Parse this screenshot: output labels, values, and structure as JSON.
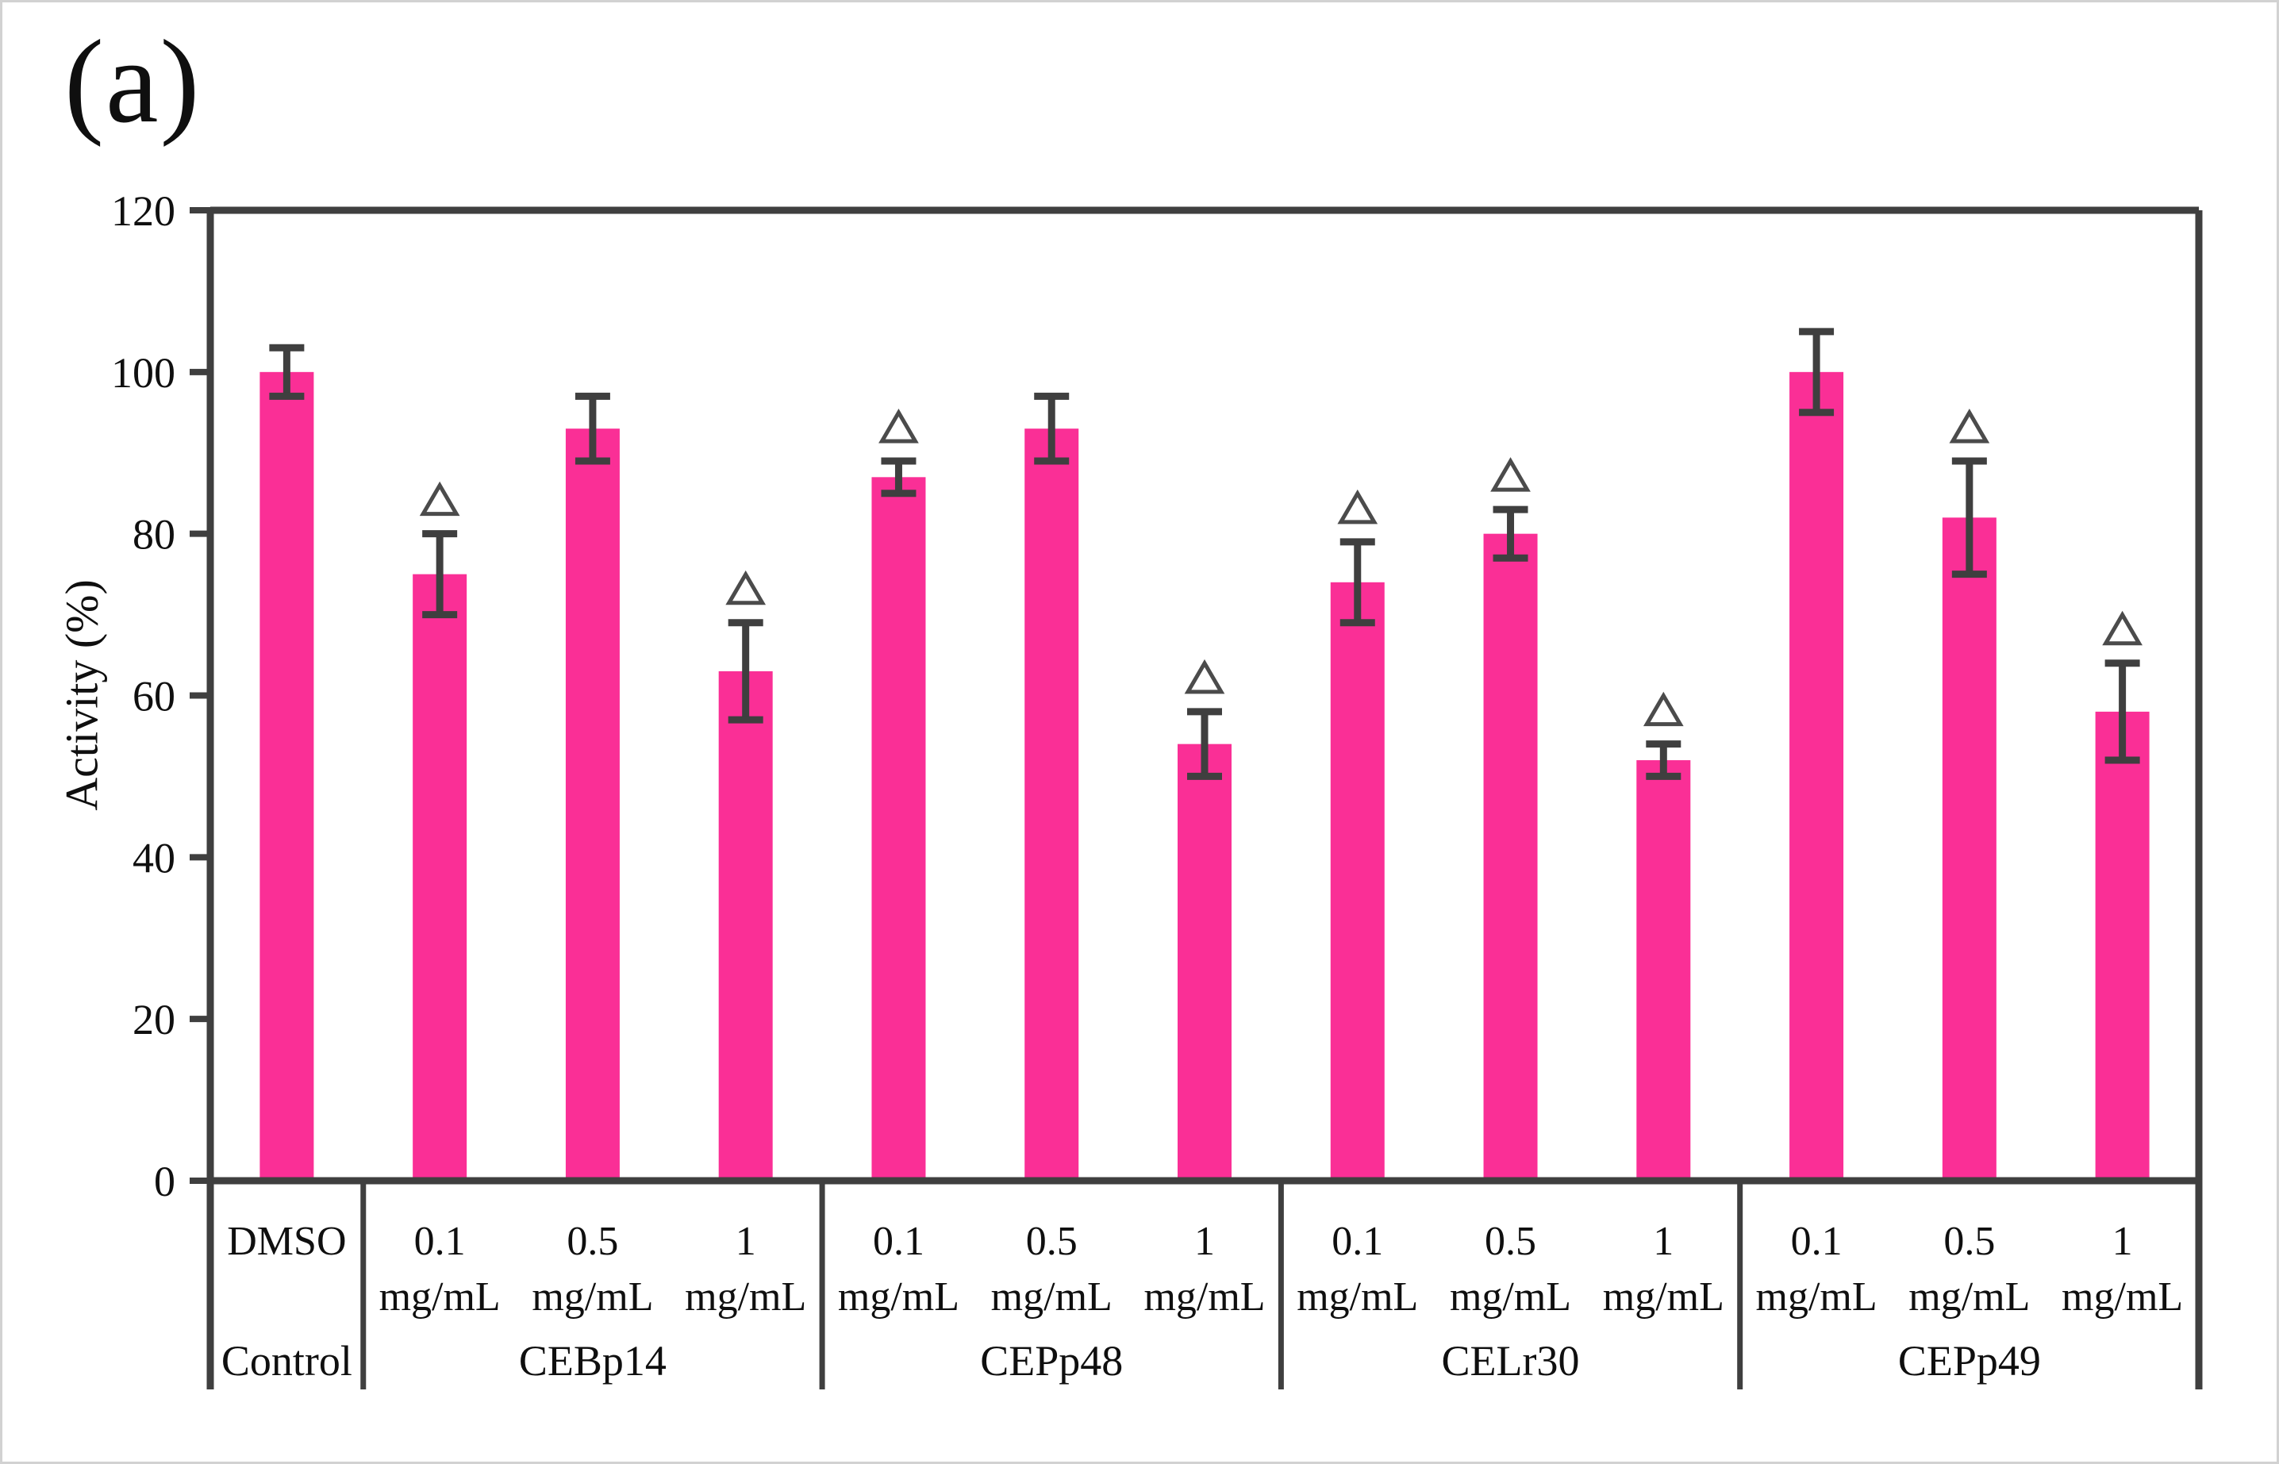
{
  "figure": {
    "panel_label": "(a)",
    "background_color": "#ffffff",
    "outer_border_color": "#d2d2d2"
  },
  "chart_data": {
    "type": "bar",
    "title": "",
    "xlabel": "",
    "ylabel": "Activity (%)",
    "ylim": [
      0,
      120
    ],
    "yticks": [
      0,
      20,
      40,
      60,
      80,
      100,
      120
    ],
    "grid": false,
    "legend_position": "none",
    "bar_color": "#fa2f96",
    "axis_color": "#3f3f3f",
    "text_color": "#0f0f0f",
    "error_bar_color": "#111111",
    "significance_marker": "open triangle (Δ) above bar",
    "marker_stroke_color": "#4b4b4b",
    "groups": [
      {
        "label": "Control",
        "bars": [
          {
            "line1": "DMSO",
            "line2": "",
            "value": 100,
            "error": 3,
            "marker": false
          }
        ]
      },
      {
        "label": "CEBp14",
        "bars": [
          {
            "line1": "0.1",
            "line2": "mg/mL",
            "value": 75,
            "error": 5,
            "marker": true
          },
          {
            "line1": "0.5",
            "line2": "mg/mL",
            "value": 93,
            "error": 4,
            "marker": false
          },
          {
            "line1": "1",
            "line2": "mg/mL",
            "value": 63,
            "error": 6,
            "marker": true
          }
        ]
      },
      {
        "label": "CEPp48",
        "bars": [
          {
            "line1": "0.1",
            "line2": "mg/mL",
            "value": 87,
            "error": 2,
            "marker": true
          },
          {
            "line1": "0.5",
            "line2": "mg/mL",
            "value": 93,
            "error": 4,
            "marker": false
          },
          {
            "line1": "1",
            "line2": "mg/mL",
            "value": 54,
            "error": 4,
            "marker": true
          }
        ]
      },
      {
        "label": "CELr30",
        "bars": [
          {
            "line1": "0.1",
            "line2": "mg/mL",
            "value": 74,
            "error": 5,
            "marker": true
          },
          {
            "line1": "0.5",
            "line2": "mg/mL",
            "value": 80,
            "error": 3,
            "marker": true
          },
          {
            "line1": "1",
            "line2": "mg/mL",
            "value": 52,
            "error": 2,
            "marker": true
          }
        ]
      },
      {
        "label": "CEPp49",
        "bars": [
          {
            "line1": "0.1",
            "line2": "mg/mL",
            "value": 100,
            "error": 5,
            "marker": false
          },
          {
            "line1": "0.5",
            "line2": "mg/mL",
            "value": 82,
            "error": 7,
            "marker": true
          },
          {
            "line1": "1",
            "line2": "mg/mL",
            "value": 58,
            "error": 6,
            "marker": true
          }
        ]
      }
    ]
  }
}
